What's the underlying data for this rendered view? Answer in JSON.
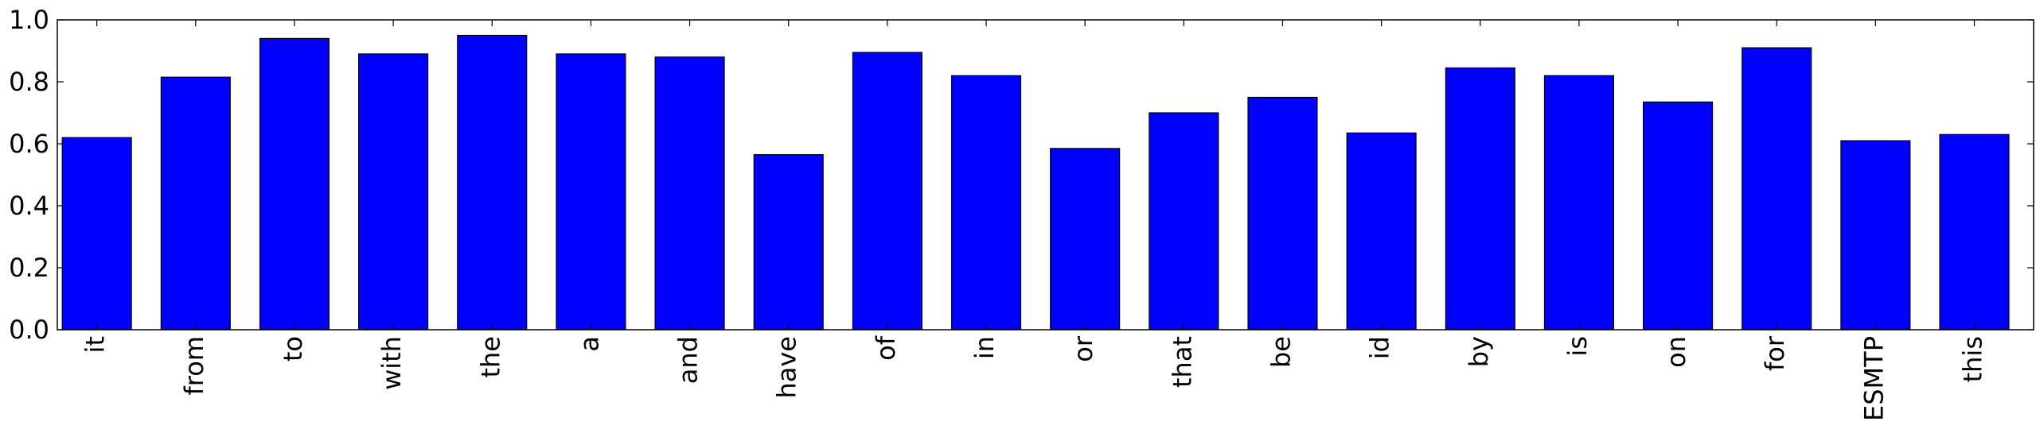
{
  "chart_data": {
    "type": "bar",
    "title": "",
    "xlabel": "",
    "ylabel": "",
    "categories": [
      "it",
      "from",
      "to",
      "with",
      "the",
      "a",
      "and",
      "have",
      "of",
      "in",
      "or",
      "that",
      "be",
      "id",
      "by",
      "is",
      "on",
      "for",
      "ESMTP",
      "this"
    ],
    "values": [
      0.62,
      0.815,
      0.94,
      0.89,
      0.95,
      0.89,
      0.88,
      0.565,
      0.895,
      0.82,
      0.585,
      0.7,
      0.75,
      0.635,
      0.845,
      0.82,
      0.735,
      0.91,
      0.61,
      0.63
    ],
    "ylim": [
      0,
      1.0
    ],
    "yticks": [
      "0.0",
      "0.2",
      "0.4",
      "0.6",
      "0.8",
      "1.0"
    ],
    "grid": false,
    "legend": "none",
    "bar_color": "#0000ff",
    "edge_color": "#000000"
  }
}
